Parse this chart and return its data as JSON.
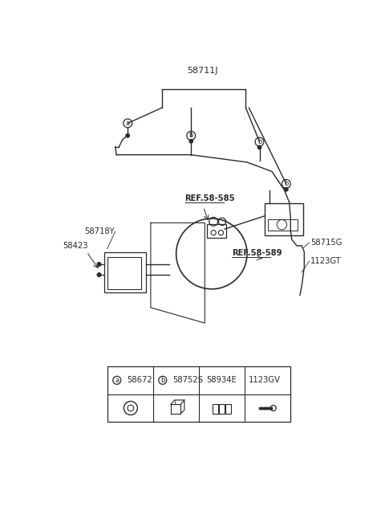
{
  "bg_color": "#ffffff",
  "line_color": "#2a2a2a",
  "part_main": "58711J",
  "label_58718Y": "58718Y",
  "label_58423": "58423",
  "label_ref585": "REF.58-585",
  "label_ref589": "REF.58-589",
  "label_58715G": "58715G",
  "label_1123GT": "1123GT",
  "legend": [
    {
      "sym": "a",
      "code": "58672"
    },
    {
      "sym": "b",
      "code": "58752S"
    },
    {
      "sym": "",
      "code": "58934E"
    },
    {
      "sym": "",
      "code": "1123GV"
    }
  ]
}
